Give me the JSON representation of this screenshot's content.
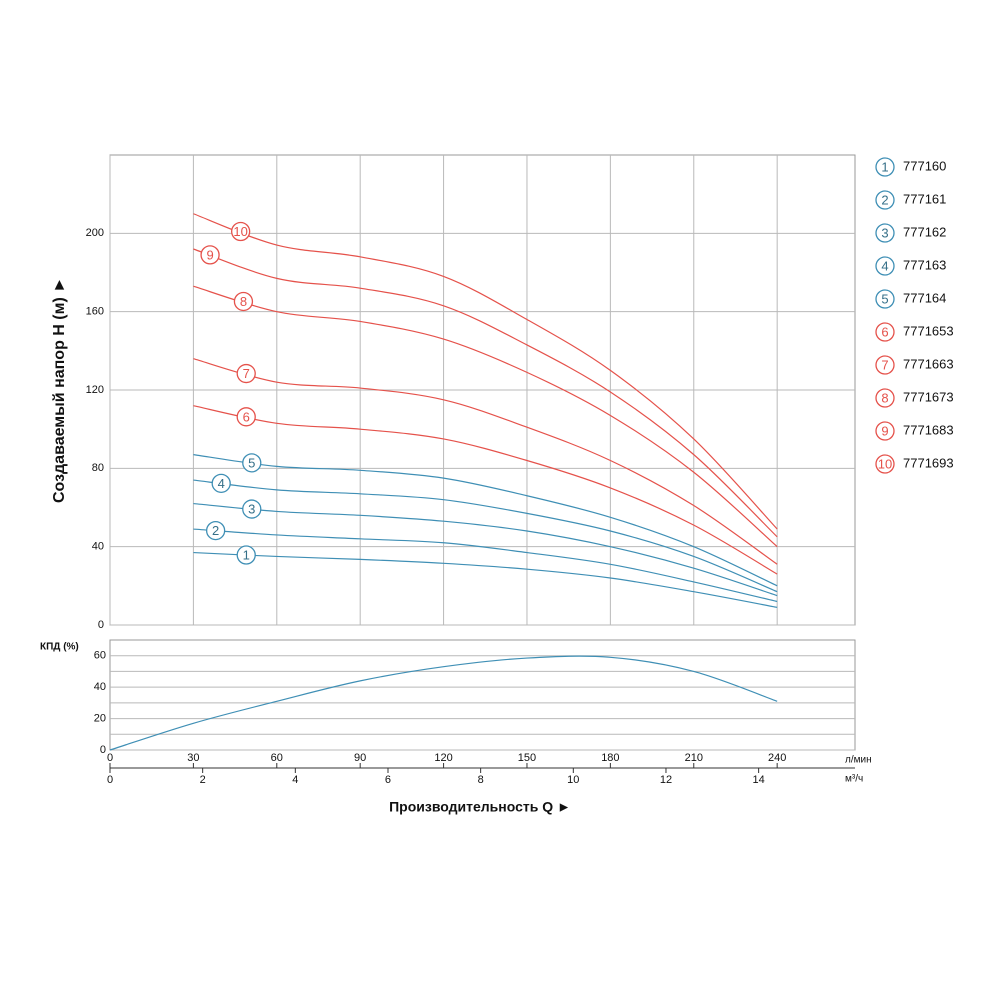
{
  "chart_data": [
    {
      "type": "line",
      "ylabel": "Создаваемый напор H (м) ►",
      "x": [
        30,
        60,
        90,
        120,
        150,
        180,
        210,
        240
      ],
      "xlim": [
        0,
        268
      ],
      "ylim": [
        0,
        240
      ],
      "yticks": [
        0,
        40,
        80,
        120,
        160,
        200
      ],
      "grid": true,
      "series": [
        {
          "label": "1",
          "name": "777160",
          "color": "#3f8fb5",
          "values": [
            37,
            35,
            33.5,
            31.5,
            28.5,
            24,
            17,
            9
          ]
        },
        {
          "label": "2",
          "name": "777161",
          "color": "#3f8fb5",
          "values": [
            49,
            46,
            44,
            42,
            37,
            31,
            22,
            12
          ]
        },
        {
          "label": "3",
          "name": "777162",
          "color": "#3f8fb5",
          "values": [
            62,
            58,
            56,
            53,
            48,
            40,
            29,
            15
          ]
        },
        {
          "label": "4",
          "name": "777163",
          "color": "#3f8fb5",
          "values": [
            74,
            69,
            67,
            64,
            57,
            48,
            35,
            17
          ]
        },
        {
          "label": "5",
          "name": "777164",
          "color": "#3f8fb5",
          "values": [
            87,
            81,
            79,
            75,
            66,
            55,
            40,
            20
          ]
        },
        {
          "label": "6",
          "name": "7771653",
          "color": "#e5524b",
          "values": [
            112,
            103,
            100,
            95,
            84,
            70,
            51,
            26
          ]
        },
        {
          "label": "7",
          "name": "7771663",
          "color": "#e5524b",
          "values": [
            136,
            124,
            121,
            115,
            101,
            84,
            61,
            31
          ]
        },
        {
          "label": "8",
          "name": "7771673",
          "color": "#e5524b",
          "values": [
            173,
            160,
            155,
            146,
            129,
            107,
            78,
            40
          ]
        },
        {
          "label": "9",
          "name": "7771683",
          "color": "#e5524b",
          "values": [
            192,
            177,
            172,
            163,
            143,
            119,
            87,
            45
          ]
        },
        {
          "label": "10",
          "name": "7771693",
          "color": "#e5524b",
          "values": [
            210,
            194,
            188,
            178,
            156,
            130,
            95,
            49
          ]
        }
      ]
    },
    {
      "type": "line",
      "ylabel": "КПД (%)",
      "x": [
        0,
        30,
        60,
        90,
        120,
        150,
        180,
        210,
        240
      ],
      "values": [
        0,
        17,
        31,
        44,
        53,
        58.5,
        59,
        50,
        31
      ],
      "color": "#3f8fb5",
      "xlim": [
        0,
        268
      ],
      "xticks": [
        0,
        30,
        60,
        90,
        120,
        150,
        180,
        210,
        240
      ],
      "xunit": "л/мин",
      "x2lim": [
        0,
        16.08
      ],
      "x2ticks": [
        0,
        2,
        4,
        6,
        8,
        10,
        12,
        14
      ],
      "x2unit": "м³/ч",
      "xlabel": "Производительность Q ►",
      "ylim": [
        0,
        70
      ],
      "yticks": [
        0,
        20,
        40,
        60
      ],
      "ygrid_minor": [
        10,
        30,
        50
      ]
    }
  ]
}
